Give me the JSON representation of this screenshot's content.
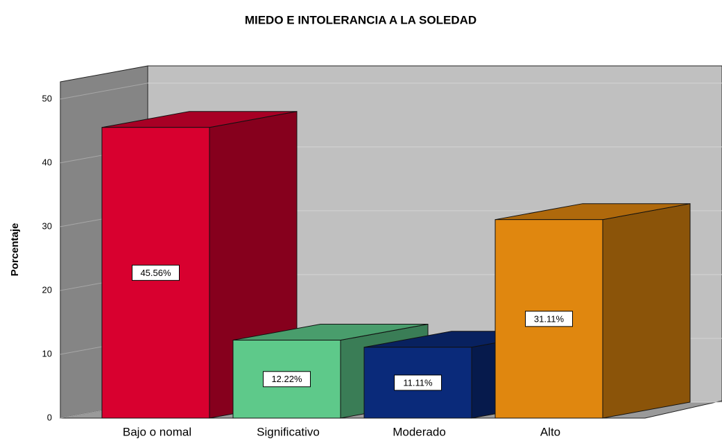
{
  "chart_data": {
    "type": "bar3d",
    "title": "MIEDO E INTOLERANCIA A LA SOLEDAD",
    "ylabel": "Porcentaje",
    "categories": [
      "Bajo o nomal",
      "Significativo",
      "Moderado",
      "Alto"
    ],
    "values": [
      45.56,
      12.22,
      11.11,
      31.11
    ],
    "value_labels": [
      "45.56%",
      "12.22%",
      "11.11%",
      "31.11%"
    ],
    "colors": [
      "#d8002f",
      "#5ec98a",
      "#0a2a7a",
      "#e0870f"
    ],
    "ylim": [
      0,
      52.7
    ],
    "yticks": [
      0,
      10,
      20,
      30,
      40,
      50
    ],
    "grid": true
  }
}
